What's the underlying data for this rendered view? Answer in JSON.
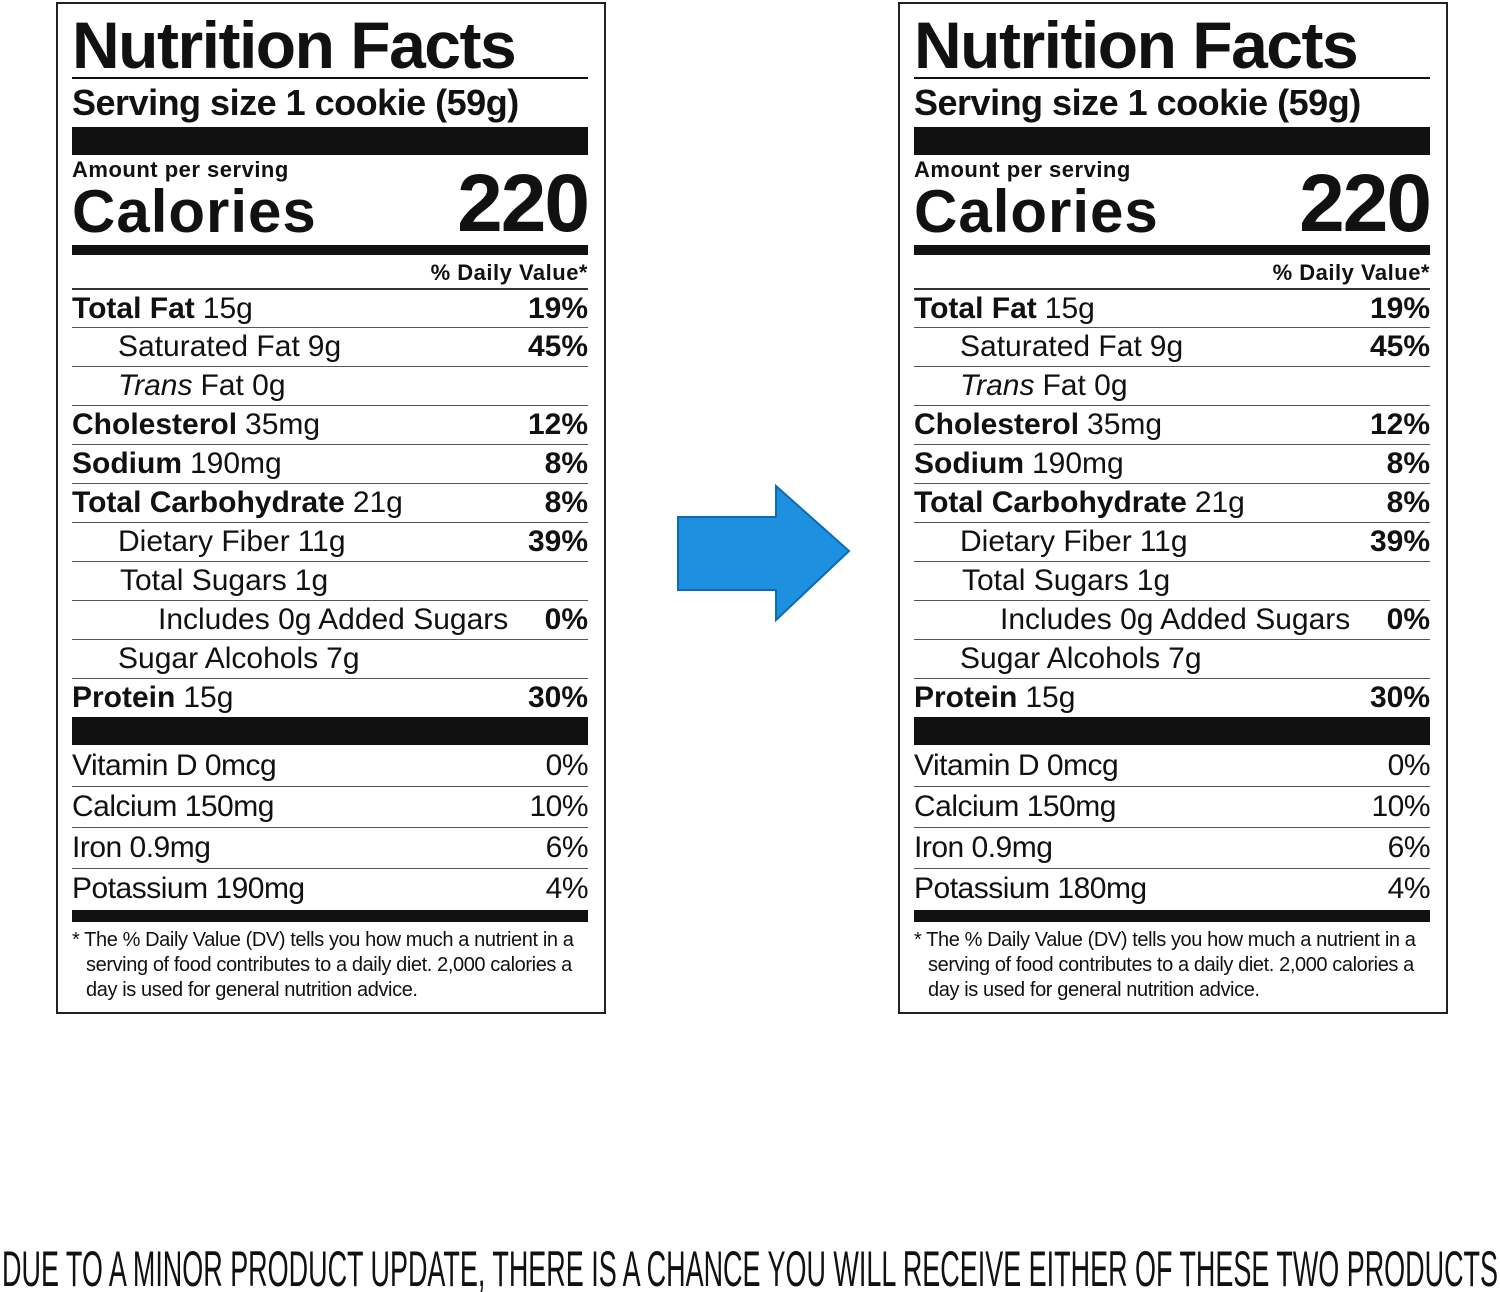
{
  "labels": [
    {
      "title": "Nutrition Facts",
      "serving": "Serving size 1 cookie (59g)",
      "amount_per_serving": "Amount per serving",
      "calories_label": "Calories",
      "calories": "220",
      "dv_header": "% Daily Value*",
      "rows": [
        {
          "name": "Total Fat",
          "amount": "15g",
          "dv": "19%"
        },
        {
          "name": "Saturated Fat",
          "amount": "9g",
          "dv": "45%"
        },
        {
          "name": "Trans",
          "amount": "Fat 0g"
        },
        {
          "name": "Cholesterol",
          "amount": "35mg",
          "dv": "12%"
        },
        {
          "name": "Sodium",
          "amount": "190mg",
          "dv": "8%"
        },
        {
          "name": "Total Carbohydrate",
          "amount": "21g",
          "dv": "8%"
        },
        {
          "name": "Dietary Fiber",
          "amount": "11g",
          "dv": "39%"
        },
        {
          "name": "Total Sugars",
          "amount": "1g"
        },
        {
          "name": "Includes 0g Added Sugars",
          "dv": "0%"
        },
        {
          "name": "Sugar Alcohols",
          "amount": "7g"
        },
        {
          "name": "Protein",
          "amount": "15g",
          "dv": "30%"
        }
      ],
      "vitamins": [
        {
          "name": "Vitamin D 0mcg",
          "dv": "0%"
        },
        {
          "name": "Calcium 150mg",
          "dv": "10%"
        },
        {
          "name": "Iron 0.9mg",
          "dv": "6%"
        },
        {
          "name": "Potassium 190mg",
          "dv": "4%"
        }
      ],
      "footnote": "* The % Daily Value (DV) tells you how much a nutrient in a serving of food contributes to a daily diet. 2,000 calories a day is used for general nutrition advice."
    },
    {
      "title": "Nutrition Facts",
      "serving": "Serving size 1 cookie (59g)",
      "amount_per_serving": "Amount per serving",
      "calories_label": "Calories",
      "calories": "220",
      "dv_header": "% Daily Value*",
      "rows": [
        {
          "name": "Total Fat",
          "amount": "15g",
          "dv": "19%"
        },
        {
          "name": "Saturated Fat",
          "amount": "9g",
          "dv": "45%"
        },
        {
          "name": "Trans",
          "amount": "Fat 0g"
        },
        {
          "name": "Cholesterol",
          "amount": "35mg",
          "dv": "12%"
        },
        {
          "name": "Sodium",
          "amount": "190mg",
          "dv": "8%"
        },
        {
          "name": "Total Carbohydrate",
          "amount": "21g",
          "dv": "8%"
        },
        {
          "name": "Dietary Fiber",
          "amount": "11g",
          "dv": "39%"
        },
        {
          "name": "Total Sugars",
          "amount": "1g"
        },
        {
          "name": "Includes 0g Added Sugars",
          "dv": "0%"
        },
        {
          "name": "Sugar Alcohols",
          "amount": "7g"
        },
        {
          "name": "Protein",
          "amount": "15g",
          "dv": "30%"
        }
      ],
      "vitamins": [
        {
          "name": "Vitamin D 0mcg",
          "dv": "0%"
        },
        {
          "name": "Calcium 150mg",
          "dv": "10%"
        },
        {
          "name": "Iron 0.9mg",
          "dv": "6%"
        },
        {
          "name": "Potassium 180mg",
          "dv": "4%"
        }
      ],
      "footnote": "* The % Daily Value (DV) tells you how much a nutrient in a serving of food contributes to a daily diet. 2,000 calories a day is used for general nutrition advice."
    }
  ],
  "caption": "DUE TO A MINOR PRODUCT UPDATE, THERE IS A CHANCE YOU WILL RECEIVE EITHER OF THESE TWO PRODUCTS"
}
